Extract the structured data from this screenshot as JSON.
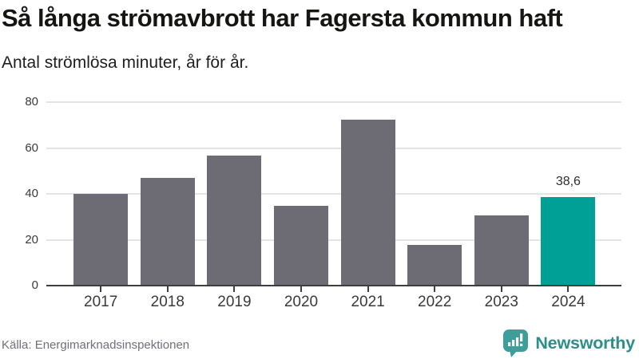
{
  "chart_data": {
    "type": "bar",
    "title": "Så långa strömavbrott har Fagersta kommun haft",
    "subtitle": "Antal strömlösa minuter, år för år.",
    "categories": [
      "2017",
      "2018",
      "2019",
      "2020",
      "2021",
      "2022",
      "2023",
      "2024"
    ],
    "values": [
      39.9,
      46.9,
      56.8,
      34.8,
      72.3,
      17.6,
      30.7,
      38.6
    ],
    "highlight_index": 7,
    "value_label": {
      "index": 7,
      "text": "38,6"
    },
    "yticks": [
      0,
      20,
      40,
      60,
      80
    ],
    "ylim": [
      0,
      83.5
    ],
    "grid": true,
    "legend": "none",
    "bar_color": "#6d6c75",
    "highlight_color": "#00a097",
    "axis_color": "#3e3e3e",
    "gridline_color": "#e4e4e4"
  },
  "footer": {
    "source": "Källa: Energimarknadsinspektionen",
    "brand": "Newsworthy",
    "brand_color": "#2e8e89",
    "logo_color": "#3f9e99"
  }
}
